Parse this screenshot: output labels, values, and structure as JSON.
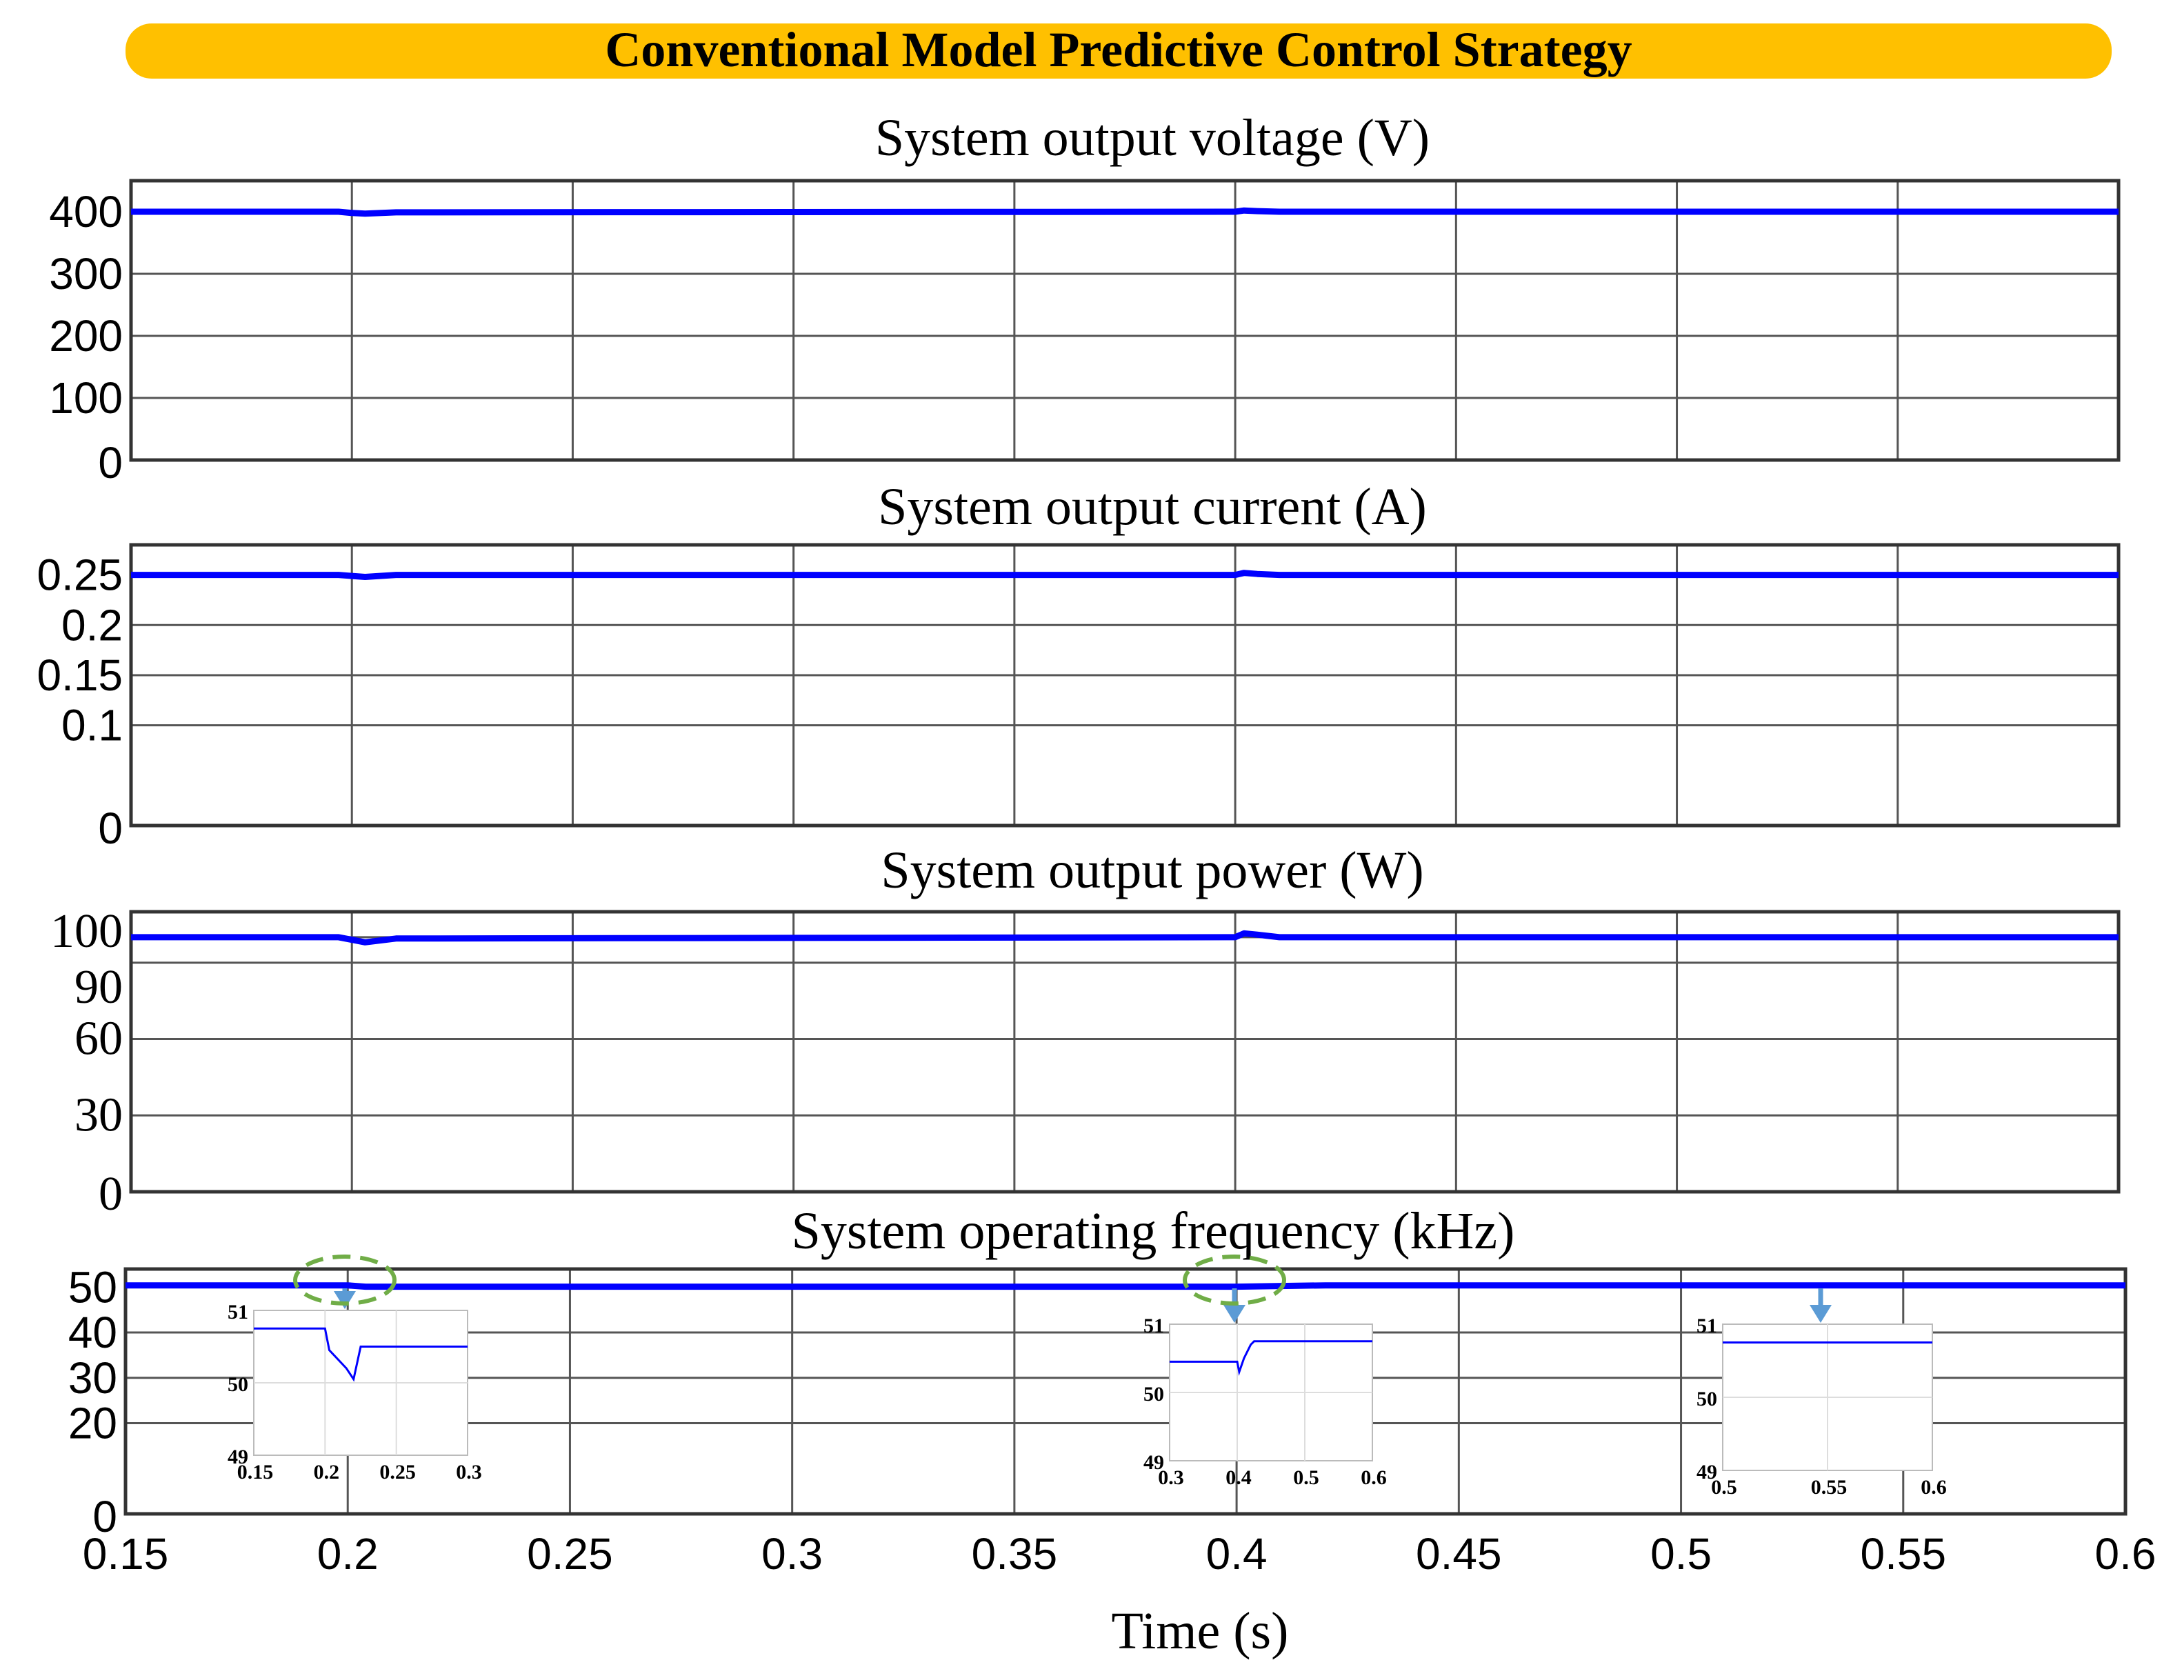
{
  "banner": {
    "text": "Conventional Model Predictive Control Strategy",
    "color": "#FFC000"
  },
  "xaxis": {
    "label": "Time (s)",
    "range": [
      0.15,
      0.6
    ],
    "ticks": [
      0.15,
      0.2,
      0.25,
      0.3,
      0.35,
      0.4,
      0.45,
      0.5,
      0.55,
      0.6
    ],
    "tick_labels": [
      "0.15",
      "0.2",
      "0.25",
      "0.3",
      "0.35",
      "0.4",
      "0.45",
      "0.5",
      "0.55",
      "0.6"
    ]
  },
  "colors": {
    "series": "#0000FF",
    "highlight": "#70AD47",
    "arrow": "#5B9BD5"
  },
  "chart_data": [
    {
      "type": "line",
      "title": "System output voltage (V)",
      "ylim": [
        0,
        450
      ],
      "yticks": [
        0,
        100,
        200,
        300,
        400
      ],
      "ytick_labels": [
        "0",
        "100",
        "200",
        "300",
        "400"
      ],
      "grid": true,
      "series": [
        {
          "x": [
            0.15,
            0.197,
            0.2,
            0.203,
            0.21,
            0.4,
            0.402,
            0.405,
            0.41,
            0.6
          ],
          "y": [
            400,
            400,
            398,
            397,
            399,
            400,
            402,
            401,
            400,
            400
          ]
        }
      ]
    },
    {
      "type": "line",
      "title": "System output current (A)",
      "ylim": [
        0,
        0.28
      ],
      "yticks": [
        0,
        0.1,
        0.15,
        0.2,
        0.25
      ],
      "ytick_labels": [
        "0",
        "0.1",
        "0.15",
        "0.2",
        "0.25"
      ],
      "grid": true,
      "series": [
        {
          "x": [
            0.15,
            0.197,
            0.2,
            0.203,
            0.21,
            0.4,
            0.402,
            0.405,
            0.41,
            0.6
          ],
          "y": [
            0.25,
            0.25,
            0.249,
            0.248,
            0.25,
            0.25,
            0.252,
            0.251,
            0.25,
            0.25
          ]
        }
      ]
    },
    {
      "type": "line",
      "title": "System output power (W)",
      "ylim": [
        0,
        110
      ],
      "yticks": [
        0,
        30,
        60,
        90,
        100
      ],
      "ytick_labels": [
        "0",
        "30",
        "60",
        "90",
        "100"
      ],
      "grid": true,
      "series": [
        {
          "x": [
            0.15,
            0.197,
            0.2,
            0.203,
            0.21,
            0.4,
            0.402,
            0.405,
            0.41,
            0.6
          ],
          "y": [
            100,
            100,
            99,
            98,
            99.5,
            100,
            101.5,
            101,
            100,
            100
          ]
        }
      ]
    },
    {
      "type": "line",
      "title": "System operating frequency (kHz)",
      "ylim": [
        0,
        54
      ],
      "yticks": [
        0,
        20,
        30,
        40,
        50
      ],
      "ytick_labels": [
        "0",
        "20",
        "30",
        "40",
        "50"
      ],
      "grid": true,
      "series": [
        {
          "x": [
            0.15,
            0.2,
            0.204,
            0.22,
            0.4,
            0.42,
            0.6
          ],
          "y": [
            50.4,
            50.4,
            50.1,
            50.1,
            50.1,
            50.4,
            50.4
          ]
        }
      ],
      "insets": [
        {
          "xlim": [
            0.15,
            0.3
          ],
          "ylim": [
            49,
            51
          ],
          "xtick_labels": [
            "0.15",
            "0.2",
            "0.25",
            "0.3"
          ],
          "ytick_labels": [
            "49",
            "50",
            "51"
          ],
          "series": {
            "x": [
              0.15,
              0.2,
              0.203,
              0.215,
              0.22,
              0.225,
              0.3
            ],
            "y": [
              50.75,
              50.75,
              50.45,
              50.2,
              50.05,
              50.5,
              50.5
            ]
          }
        },
        {
          "xlim": [
            0.3,
            0.6
          ],
          "ylim": [
            49,
            51
          ],
          "xtick_labels": [
            "0.3",
            "0.4",
            "0.5",
            "0.6"
          ],
          "ytick_labels": [
            "49",
            "50",
            "51"
          ],
          "series": {
            "x": [
              0.3,
              0.4,
              0.403,
              0.41,
              0.42,
              0.425,
              0.6
            ],
            "y": [
              50.45,
              50.45,
              50.3,
              50.5,
              50.7,
              50.75,
              50.75
            ]
          }
        },
        {
          "xlim": [
            0.5,
            0.6
          ],
          "ylim": [
            49,
            51
          ],
          "xtick_labels": [
            "0.5",
            "0.55",
            "0.6"
          ],
          "ytick_labels": [
            "49",
            "50",
            "51"
          ],
          "series": {
            "x": [
              0.5,
              0.6
            ],
            "y": [
              50.75,
              50.75
            ]
          }
        }
      ]
    }
  ]
}
